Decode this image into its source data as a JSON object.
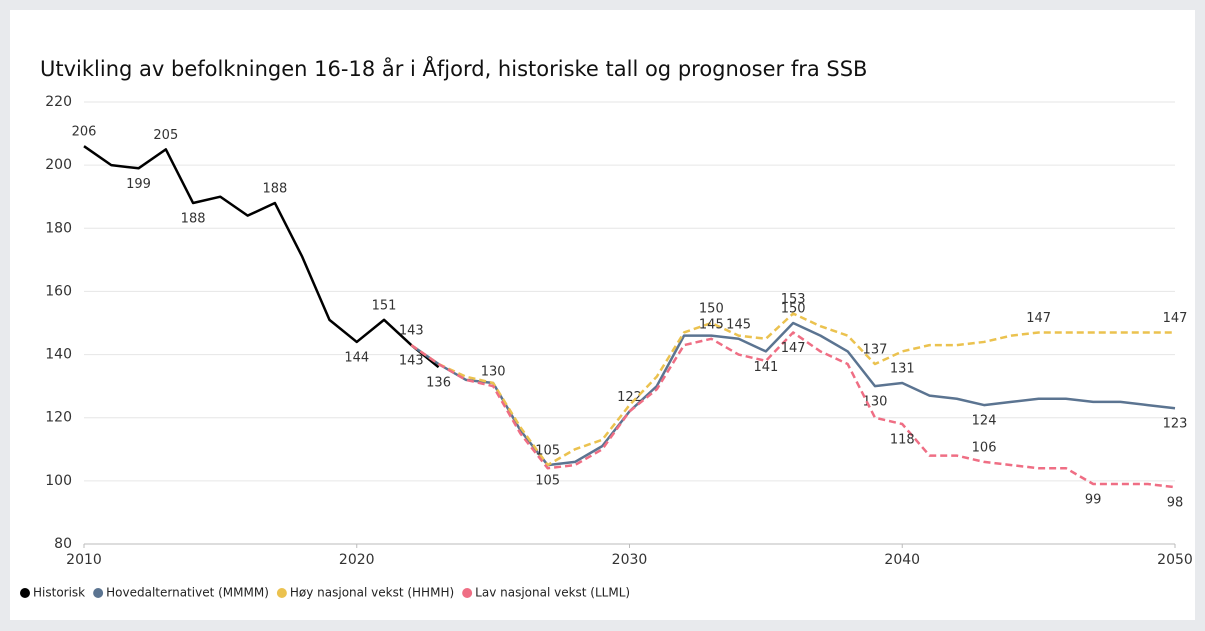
{
  "chart_data": {
    "type": "line",
    "title": "Utvikling av befolkningen 16-18 år i Åfjord, historiske tall og prognoser fra SSB",
    "x": [
      2010,
      2011,
      2012,
      2013,
      2014,
      2015,
      2016,
      2017,
      2018,
      2019,
      2020,
      2021,
      2022,
      2023,
      2024,
      2025,
      2026,
      2027,
      2028,
      2029,
      2030,
      2031,
      2032,
      2033,
      2034,
      2035,
      2036,
      2037,
      2038,
      2039,
      2040,
      2041,
      2042,
      2043,
      2044,
      2045,
      2046,
      2047,
      2048,
      2049,
      2050
    ],
    "series": [
      {
        "name": "Historisk",
        "color": "#000000",
        "dashed": false,
        "values": [
          206,
          200,
          199,
          205,
          188,
          190,
          184,
          188,
          171,
          151,
          144,
          151,
          143,
          136,
          null,
          null,
          null,
          null,
          null,
          null,
          null,
          null,
          null,
          null,
          null,
          null,
          null,
          null,
          null,
          null,
          null,
          null,
          null,
          null,
          null,
          null,
          null,
          null,
          null,
          null,
          null
        ],
        "value_labels": [
          "206",
          null,
          "199",
          "205",
          "188",
          null,
          null,
          "188",
          null,
          null,
          "144",
          "151",
          "143",
          "136",
          null,
          null,
          null,
          null,
          null,
          null,
          null,
          null,
          null,
          null,
          null,
          null,
          null,
          null,
          null,
          null,
          null,
          null,
          null,
          null,
          null,
          null,
          null,
          null,
          null,
          null,
          null
        ]
      },
      {
        "name": "Hovedalternativet (MMMM)",
        "color": "#5b7491",
        "dashed": false,
        "values": [
          null,
          null,
          null,
          null,
          null,
          null,
          null,
          null,
          null,
          null,
          null,
          null,
          143,
          137,
          132,
          131,
          116,
          105,
          106,
          111,
          122,
          130,
          146,
          146,
          145,
          141,
          150,
          146,
          141,
          130,
          131,
          127,
          126,
          124,
          125,
          126,
          126,
          125,
          125,
          124,
          123
        ],
        "value_labels": [
          null,
          null,
          null,
          null,
          null,
          null,
          null,
          null,
          null,
          null,
          null,
          null,
          "143",
          null,
          null,
          null,
          null,
          "105",
          null,
          null,
          "122",
          null,
          null,
          null,
          "145",
          "141",
          "150",
          null,
          null,
          "130",
          "131",
          null,
          null,
          "124",
          null,
          null,
          null,
          null,
          null,
          null,
          "123"
        ]
      },
      {
        "name": "Høy nasjonal vekst (HHMH)",
        "color": "#ebc24f",
        "dashed": true,
        "values": [
          null,
          null,
          null,
          null,
          null,
          null,
          null,
          null,
          null,
          null,
          null,
          null,
          143,
          137,
          133,
          131,
          117,
          105,
          110,
          113,
          124,
          133,
          147,
          150,
          146,
          145,
          153,
          149,
          146,
          137,
          141,
          143,
          143,
          144,
          146,
          147,
          147,
          147,
          147,
          147,
          147
        ],
        "value_labels": [
          null,
          null,
          null,
          null,
          null,
          null,
          null,
          null,
          null,
          null,
          null,
          null,
          null,
          null,
          null,
          null,
          null,
          "105",
          null,
          null,
          null,
          null,
          null,
          "150",
          null,
          null,
          "153",
          null,
          null,
          "137",
          null,
          null,
          null,
          null,
          null,
          "147",
          null,
          null,
          null,
          null,
          "147"
        ]
      },
      {
        "name": "Lav nasjonal vekst (LLML)",
        "color": "#ef6e84",
        "dashed": true,
        "values": [
          null,
          null,
          null,
          null,
          null,
          null,
          null,
          null,
          null,
          null,
          null,
          null,
          143,
          137,
          132,
          130,
          115,
          104,
          105,
          110,
          122,
          129,
          143,
          145,
          140,
          138,
          147,
          141,
          137,
          120,
          118,
          108,
          108,
          106,
          105,
          104,
          104,
          99,
          99,
          99,
          98
        ],
        "value_labels": [
          null,
          null,
          null,
          null,
          null,
          null,
          null,
          null,
          null,
          null,
          null,
          null,
          null,
          null,
          null,
          "130",
          null,
          null,
          null,
          null,
          null,
          null,
          null,
          "145",
          null,
          null,
          "147",
          null,
          null,
          null,
          "118",
          null,
          null,
          "106",
          null,
          null,
          null,
          "99",
          null,
          null,
          "98"
        ]
      }
    ],
    "xlim": [
      2010,
      2050
    ],
    "xticks": [
      2010,
      2020,
      2030,
      2040,
      2050
    ],
    "ylim": [
      80,
      220
    ],
    "yticks": [
      80,
      100,
      120,
      140,
      160,
      180,
      200,
      220
    ],
    "grid": true,
    "legend": "bottom-left"
  }
}
